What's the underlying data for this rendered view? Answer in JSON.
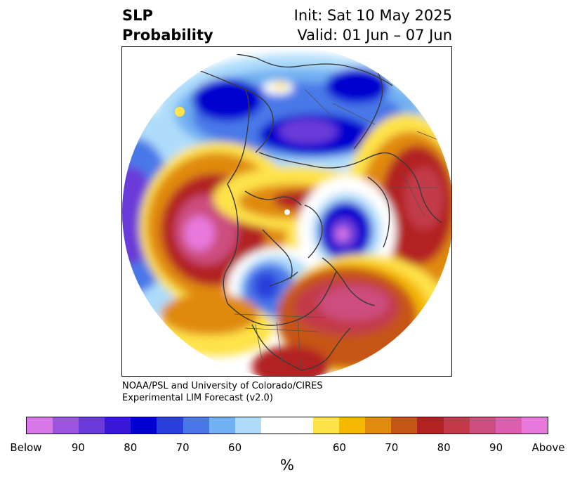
{
  "title": {
    "left_line1": "SLP",
    "left_line2": "Probability",
    "right_line1": "Init: Sat 10 May 2025",
    "right_line2": "Valid: 01 Jun – 07 Jun"
  },
  "credit": {
    "line1": "NOAA/PSL and University of Colorado/CIRES",
    "line2": "Experimental LIM Forecast (v2.0)"
  },
  "colorbar": {
    "unit": "%",
    "colors_below": [
      "#d877e8",
      "#9b55de",
      "#6a3ad8",
      "#3a17d6",
      "#0000cf",
      "#2940dc",
      "#4a78e8",
      "#71b0f2",
      "#aedcfa"
    ],
    "color_neutral": "#ffffff",
    "colors_above": [
      "#fee349",
      "#f5b800",
      "#e08a0e",
      "#c65417",
      "#b22222",
      "#c23a4a",
      "#cc4e7e",
      "#db5fae",
      "#e878dc"
    ],
    "tick_labels": [
      "Below",
      "90",
      "80",
      "70",
      "60",
      "60",
      "70",
      "80",
      "90",
      "Above"
    ]
  },
  "map": {
    "projection": "north-polar-stereographic",
    "features": [
      "coastlines",
      "country-borders",
      "state-borders"
    ],
    "colors": {
      "border": "#3a3a3a",
      "land_line": "#404040"
    }
  }
}
